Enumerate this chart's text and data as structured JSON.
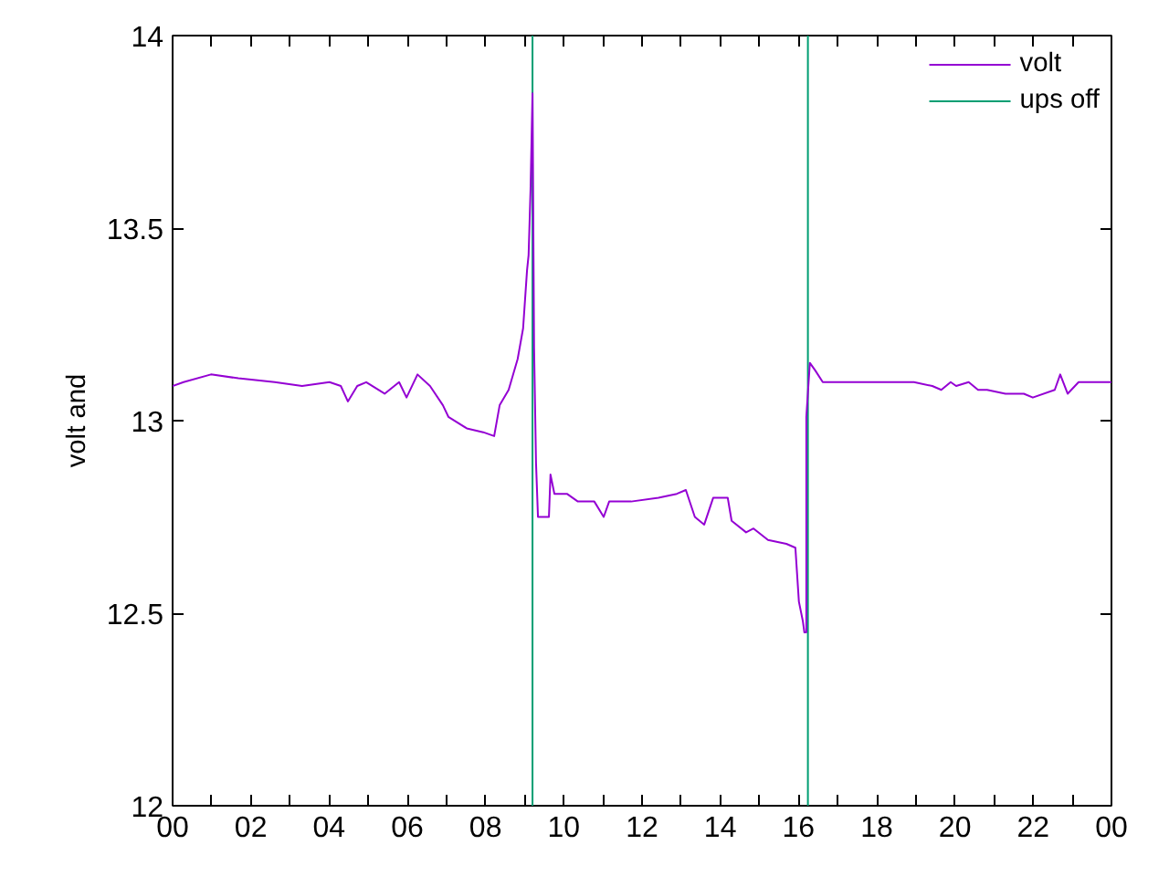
{
  "chart_data": {
    "type": "line",
    "ylabel": "volt and",
    "xlim": [
      0,
      24
    ],
    "ylim": [
      12,
      14
    ],
    "xticks": [
      {
        "value": 0,
        "label": "00"
      },
      {
        "value": 1,
        "label": null
      },
      {
        "value": 2,
        "label": "02"
      },
      {
        "value": 3,
        "label": null
      },
      {
        "value": 4,
        "label": "04"
      },
      {
        "value": 5,
        "label": null
      },
      {
        "value": 6,
        "label": "06"
      },
      {
        "value": 7,
        "label": null
      },
      {
        "value": 8,
        "label": "08"
      },
      {
        "value": 9,
        "label": null
      },
      {
        "value": 10,
        "label": "10"
      },
      {
        "value": 11,
        "label": null
      },
      {
        "value": 12,
        "label": "12"
      },
      {
        "value": 13,
        "label": null
      },
      {
        "value": 14,
        "label": "14"
      },
      {
        "value": 15,
        "label": null
      },
      {
        "value": 16,
        "label": "16"
      },
      {
        "value": 17,
        "label": null
      },
      {
        "value": 18,
        "label": "18"
      },
      {
        "value": 19,
        "label": null
      },
      {
        "value": 20,
        "label": "20"
      },
      {
        "value": 21,
        "label": null
      },
      {
        "value": 22,
        "label": "22"
      },
      {
        "value": 23,
        "label": null
      },
      {
        "value": 24,
        "label": "00"
      }
    ],
    "yticks": [
      12,
      12.5,
      13,
      13.5,
      14
    ],
    "grid": false,
    "legend": "top right",
    "line_style": "solid",
    "marker": "none",
    "series": [
      {
        "name": "volt",
        "color": "#9400d3",
        "x": [
          0,
          0.28,
          0.98,
          1.68,
          2.61,
          3.31,
          4.01,
          4.3,
          4.48,
          4.72,
          4.95,
          5.42,
          5.79,
          5.98,
          6.26,
          6.58,
          6.91,
          7.05,
          7.52,
          7.94,
          8.22,
          8.36,
          8.59,
          8.82,
          8.96,
          9.06,
          9.1,
          9.15,
          9.2,
          9.24,
          9.29,
          9.34,
          9.62,
          9.66,
          9.76,
          10.08,
          10.36,
          10.78,
          11.02,
          11.16,
          11.72,
          12.42,
          12.89,
          13.12,
          13.35,
          13.59,
          13.82,
          14.19,
          14.29,
          14.66,
          14.85,
          15.22,
          15.69,
          15.92,
          16.01,
          16.11,
          16.15,
          16.2,
          16.2,
          16.29,
          16.43,
          16.62,
          17.55,
          18.02,
          18.95,
          19.42,
          19.65,
          19.89,
          20.03,
          20.35,
          20.59,
          20.82,
          21.29,
          21.76,
          21.99,
          22.55,
          22.69,
          22.88,
          23.16,
          23.62,
          24
        ],
        "values": [
          13.09,
          13.1,
          13.12,
          13.11,
          13.1,
          13.09,
          13.1,
          13.09,
          13.05,
          13.09,
          13.1,
          13.07,
          13.1,
          13.06,
          13.12,
          13.09,
          13.04,
          13.01,
          12.98,
          12.97,
          12.96,
          13.04,
          13.08,
          13.16,
          13.24,
          13.39,
          13.43,
          13.6,
          13.85,
          13.19,
          12.89,
          12.75,
          12.75,
          12.86,
          12.81,
          12.81,
          12.79,
          12.79,
          12.75,
          12.79,
          12.79,
          12.8,
          12.81,
          12.82,
          12.75,
          12.73,
          12.8,
          12.8,
          12.74,
          12.71,
          12.72,
          12.69,
          12.68,
          12.67,
          12.53,
          12.48,
          12.45,
          12.45,
          13.01,
          13.15,
          13.13,
          13.1,
          13.1,
          13.1,
          13.1,
          13.09,
          13.08,
          13.1,
          13.09,
          13.1,
          13.08,
          13.08,
          13.07,
          13.07,
          13.06,
          13.08,
          13.12,
          13.07,
          13.1,
          13.1,
          13.1
        ]
      },
      {
        "name": "ups off",
        "color": "#009e73",
        "x": [
          9.2,
          9.2,
          null,
          16.24,
          16.24
        ],
        "values": [
          12,
          14,
          null,
          14,
          12
        ]
      }
    ]
  }
}
